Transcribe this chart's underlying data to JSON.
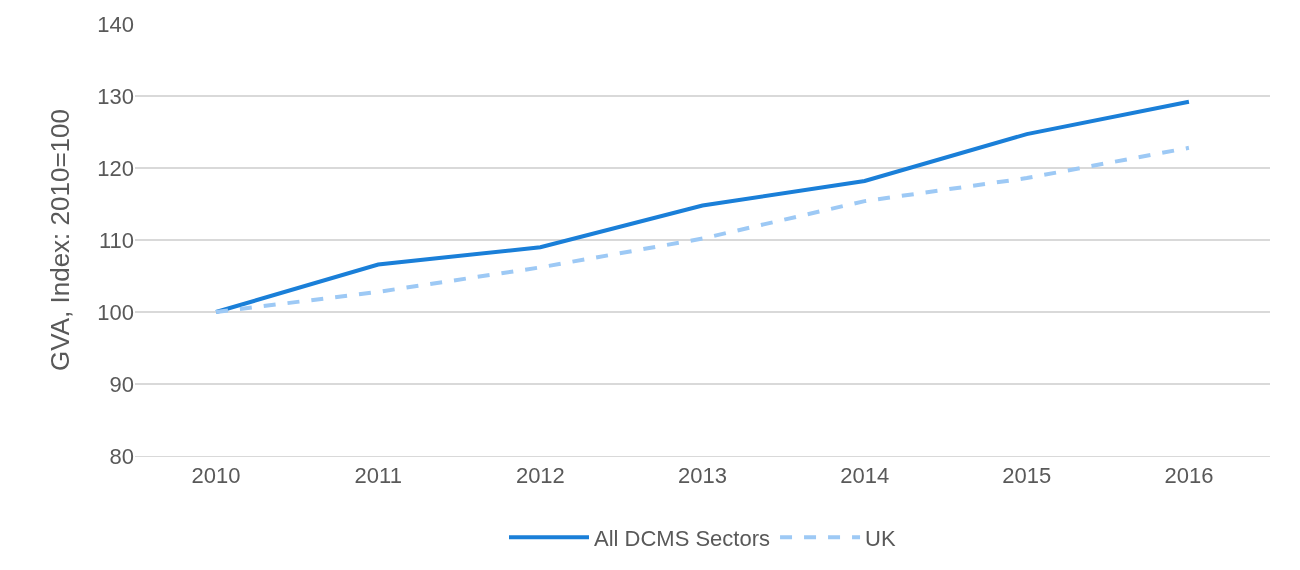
{
  "chart_data": {
    "type": "line",
    "ylabel": "GVA, Index: 2010=100",
    "categories": [
      "2010",
      "2011",
      "2012",
      "2013",
      "2014",
      "2015",
      "2016"
    ],
    "series": [
      {
        "name": "All DCMS Sectors",
        "color": "#1a7fd8",
        "values": [
          100,
          106.6,
          109,
          114.8,
          118.2,
          124.7,
          129.2
        ],
        "line_style": "solid"
      },
      {
        "name": "UK",
        "color": "#9dc9f5",
        "values": [
          100,
          102.8,
          106.2,
          110.2,
          115.4,
          118.6,
          122.8
        ],
        "line_style": "dashed"
      }
    ],
    "ylim": [
      80,
      140
    ],
    "yticks": [
      80,
      90,
      100,
      110,
      120,
      130,
      140
    ],
    "grid": "y",
    "legend": "bottom",
    "marker": "none"
  }
}
